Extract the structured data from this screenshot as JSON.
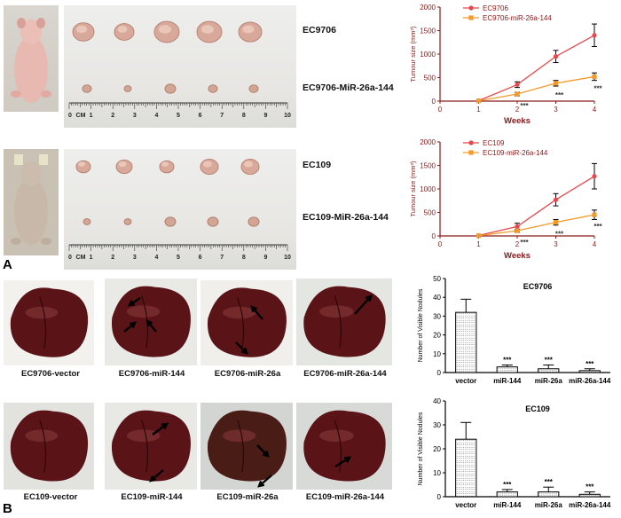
{
  "panel_a": {
    "letter": "A",
    "group1": {
      "top_label": "EC9706",
      "bottom_label": "EC9706-MiR-26a-144"
    },
    "group2": {
      "top_label": "EC109",
      "bottom_label": "EC109-MiR-26a-144"
    },
    "ruler": {
      "unit": "CM",
      "ticks": [
        "0",
        "1",
        "2",
        "3",
        "4",
        "5",
        "6",
        "7",
        "8",
        "9",
        "10"
      ]
    }
  },
  "panel_b": {
    "letter": "B",
    "row1_captions": [
      "EC9706-vector",
      "EC9706-miR-144",
      "EC9706-miR-26a",
      "EC9706-miR-26a-144"
    ],
    "row2_captions": [
      "EC109-vector",
      "EC109-miR-144",
      "EC109-miR-26a",
      "EC109-miR-26a-144"
    ]
  },
  "colors": {
    "red_series": "#e8484c",
    "orange_series": "#f39a2c",
    "axis_red": "#8b1a1a",
    "liver": "#5a1418"
  },
  "chart_data": [
    {
      "type": "line",
      "title": "",
      "xlabel": "Weeks",
      "ylabel": "Tumour size (mm³)",
      "x": [
        1,
        2,
        3,
        4
      ],
      "xticks": [
        "0",
        "1",
        "2",
        "3",
        "4"
      ],
      "yticks": [
        "0",
        "500",
        "1000",
        "1500",
        "2000"
      ],
      "xlim": [
        0,
        4
      ],
      "ylim": [
        0,
        2000
      ],
      "series": [
        {
          "name": "EC9706",
          "values": [
            10,
            350,
            950,
            1400
          ],
          "errors": [
            0,
            60,
            130,
            240
          ]
        },
        {
          "name": "EC9706-miR-26a-144",
          "values": [
            5,
            150,
            380,
            520
          ],
          "errors": [
            0,
            40,
            60,
            80
          ]
        }
      ],
      "annotations": [
        "***",
        "***",
        "***"
      ]
    },
    {
      "type": "line",
      "title": "",
      "xlabel": "Weeks",
      "ylabel": "Tumour size (mm³)",
      "x": [
        1,
        2,
        3,
        4
      ],
      "xticks": [
        "0",
        "1",
        "2",
        "3",
        "4"
      ],
      "yticks": [
        "0",
        "500",
        "1000",
        "1500",
        "2000"
      ],
      "xlim": [
        0,
        4
      ],
      "ylim": [
        0,
        2000
      ],
      "series": [
        {
          "name": "EC109",
          "values": [
            10,
            200,
            770,
            1270
          ],
          "errors": [
            0,
            70,
            130,
            270
          ]
        },
        {
          "name": "EC109-miR-26a-144",
          "values": [
            5,
            110,
            290,
            450
          ],
          "errors": [
            0,
            30,
            60,
            100
          ]
        }
      ],
      "annotations": [
        "***",
        "***",
        "***"
      ]
    },
    {
      "type": "bar",
      "title": "EC9706",
      "xlabel": "",
      "ylabel": "Number of Visible Nodules",
      "categories": [
        "vector",
        "miR-144",
        "miR-26a",
        "miR-26a-144"
      ],
      "values": [
        32,
        3,
        2,
        1
      ],
      "errors": [
        7,
        1,
        2,
        1
      ],
      "yticks": [
        "0",
        "10",
        "20",
        "30",
        "40",
        "50"
      ],
      "ylim": [
        0,
        50
      ],
      "annotations": [
        "",
        "***",
        "***",
        "***"
      ]
    },
    {
      "type": "bar",
      "title": "EC109",
      "xlabel": "",
      "ylabel": "Number of Visible Nodules",
      "categories": [
        "vector",
        "miR-144",
        "miR-26a",
        "miR-26a-144"
      ],
      "values": [
        24,
        2,
        2,
        1
      ],
      "errors": [
        7,
        1,
        2,
        1
      ],
      "yticks": [
        "0",
        "10",
        "20",
        "30",
        "40"
      ],
      "ylim": [
        0,
        40
      ],
      "annotations": [
        "",
        "***",
        "***",
        "***"
      ]
    }
  ]
}
